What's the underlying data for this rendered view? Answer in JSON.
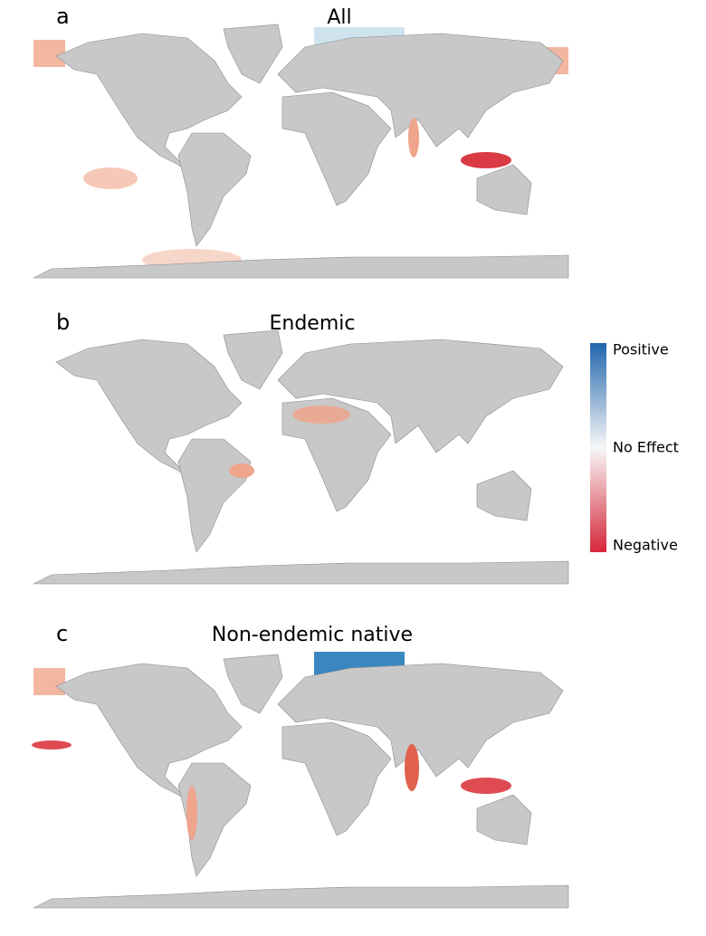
{
  "panels": [
    {
      "letter": "a",
      "title": "All"
    },
    {
      "letter": "b",
      "title": "Endemic"
    },
    {
      "letter": "c",
      "title": "Non-endemic native"
    }
  ],
  "legend": {
    "positive": "Positive",
    "no_effect": "No Effect",
    "negative": "Negative"
  }
}
